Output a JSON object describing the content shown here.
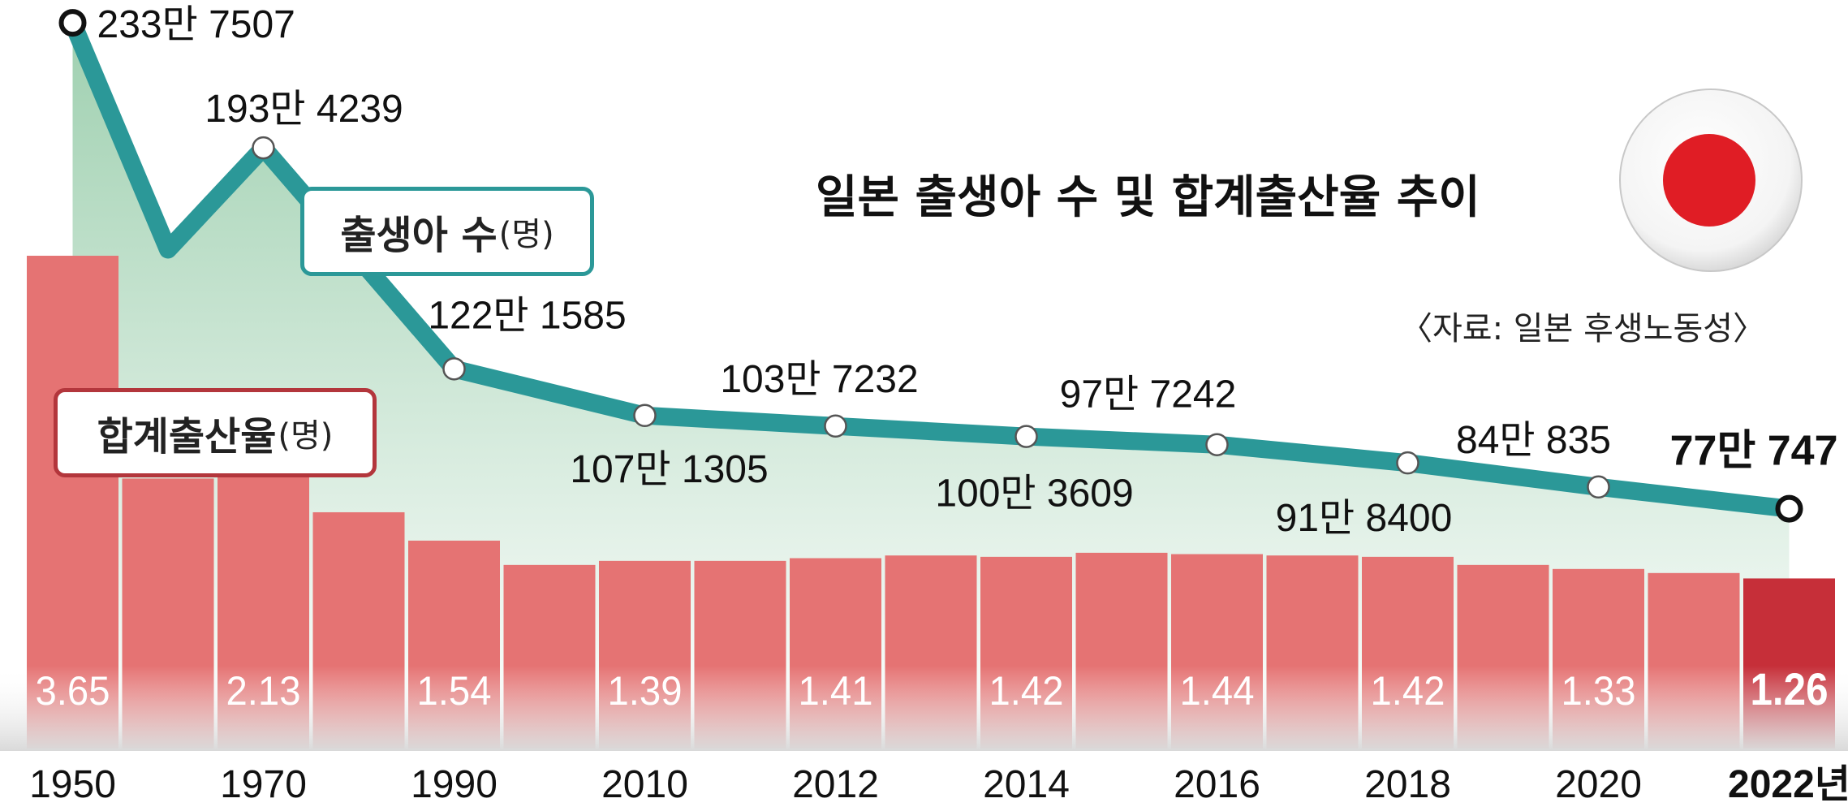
{
  "title": "일본 출생아 수 및 합계출산율 추이",
  "source": "〈자료: 일본 후생노동성〉",
  "colors": {
    "bar": "#e57373",
    "bar_last": "#c62f39",
    "line": "#2b9898",
    "area_top": "#9fd0b0",
    "area_bottom": "#ffffff",
    "flag_red": "#e01d25",
    "birth_legend_border": "#2b9898",
    "rate_legend_border": "#b3363c"
  },
  "legend": {
    "births_label": "출생아 수",
    "births_unit": "(명)",
    "rate_label": "합계출산율",
    "rate_unit": "(명)"
  },
  "flag_icon": "japan-flag",
  "chart_data": {
    "type": "bar+line",
    "x_tick_labels": [
      "1950",
      "1970",
      "1990",
      "2010",
      "2012",
      "2014",
      "2016",
      "2018",
      "2020",
      "2022년"
    ],
    "rate_series": {
      "name": "합계출산율",
      "unit": "명",
      "points": [
        {
          "x": "1950",
          "value": 3.65,
          "label": "3.65"
        },
        {
          "x": "1960",
          "value": 2.0,
          "label": ""
        },
        {
          "x": "1970",
          "value": 2.13,
          "label": "2.13"
        },
        {
          "x": "1980",
          "value": 1.75,
          "label": ""
        },
        {
          "x": "1990",
          "value": 1.54,
          "label": "1.54"
        },
        {
          "x": "2000",
          "value": 1.36,
          "label": ""
        },
        {
          "x": "2010",
          "value": 1.39,
          "label": "1.39"
        },
        {
          "x": "2011",
          "value": 1.39,
          "label": ""
        },
        {
          "x": "2012",
          "value": 1.41,
          "label": "1.41"
        },
        {
          "x": "2013",
          "value": 1.43,
          "label": ""
        },
        {
          "x": "2014",
          "value": 1.42,
          "label": "1.42"
        },
        {
          "x": "2015",
          "value": 1.45,
          "label": ""
        },
        {
          "x": "2016",
          "value": 1.44,
          "label": "1.44"
        },
        {
          "x": "2017",
          "value": 1.43,
          "label": ""
        },
        {
          "x": "2018",
          "value": 1.42,
          "label": "1.42"
        },
        {
          "x": "2019",
          "value": 1.36,
          "label": ""
        },
        {
          "x": "2020",
          "value": 1.33,
          "label": "1.33"
        },
        {
          "x": "2021",
          "value": 1.3,
          "label": ""
        },
        {
          "x": "2022",
          "value": 1.26,
          "label": "1.26"
        }
      ]
    },
    "births_series": {
      "name": "출생아 수",
      "unit": "명",
      "points": [
        {
          "x": "1950",
          "value": 2337507,
          "label": "233만 7507"
        },
        {
          "x": "1960",
          "value": 1606041,
          "label": ""
        },
        {
          "x": "1970",
          "value": 1934239,
          "label": "193만 4239"
        },
        {
          "x": "1990",
          "value": 1221585,
          "label": "122만 1585"
        },
        {
          "x": "2010",
          "value": 1071305,
          "label": "107만 1305"
        },
        {
          "x": "2012",
          "value": 1037232,
          "label": "103만 7232"
        },
        {
          "x": "2014",
          "value": 1003609,
          "label": "100만 3609"
        },
        {
          "x": "2016",
          "value": 977242,
          "label": "97만 7242"
        },
        {
          "x": "2018",
          "value": 918400,
          "label": "91만 8400"
        },
        {
          "x": "2020",
          "value": 840835,
          "label": "84만 835"
        },
        {
          "x": "2022",
          "value": 770747,
          "label": "77만 747"
        }
      ]
    }
  }
}
